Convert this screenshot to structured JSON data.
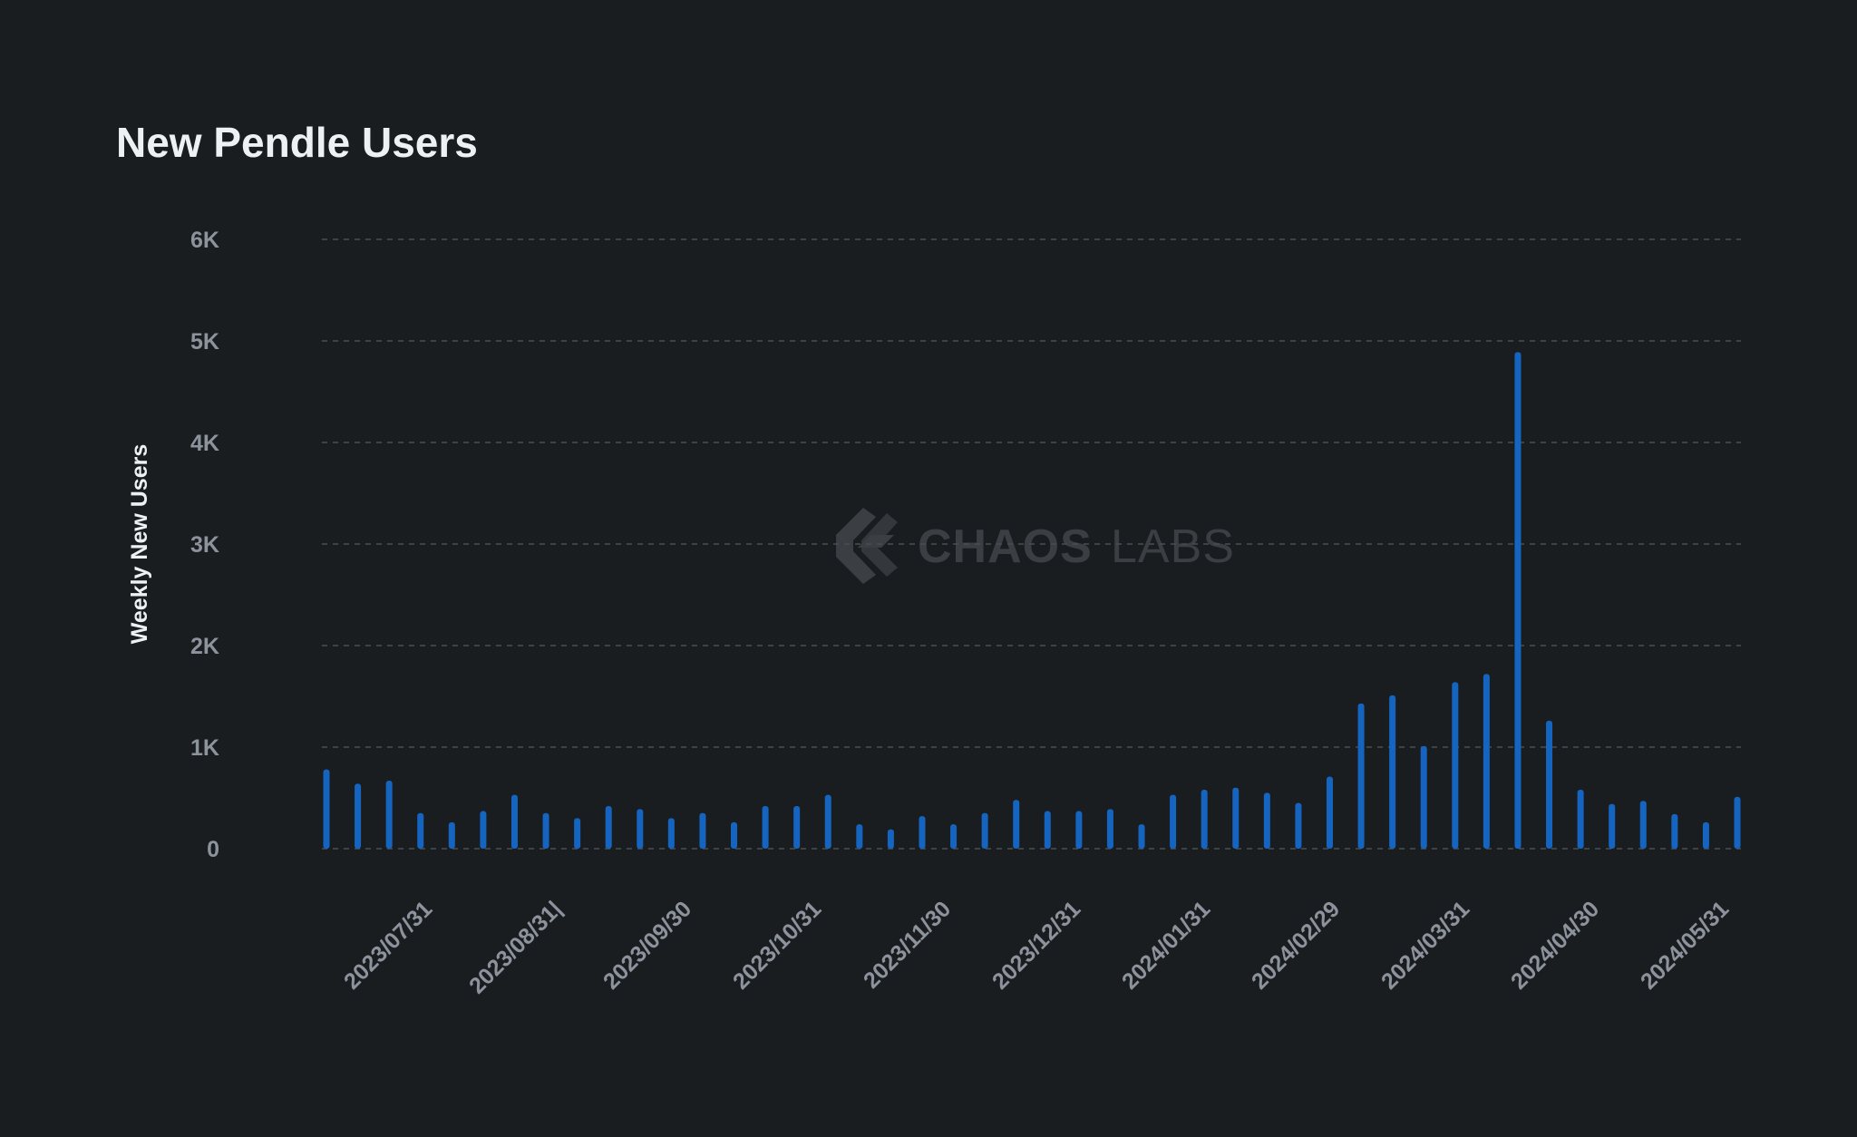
{
  "chart_data": {
    "type": "bar",
    "title": "New Pendle Users",
    "xlabel": "",
    "ylabel": "Weekly New Users",
    "ylim": [
      0,
      6000
    ],
    "y_ticks": [
      0,
      1000,
      2000,
      3000,
      4000,
      5000,
      6000
    ],
    "y_tick_labels": [
      "0",
      "1K",
      "2K",
      "3K",
      "4K",
      "5K",
      "6K"
    ],
    "x_tick_labels": [
      "2023/07/31",
      "2023/08/31|",
      "2023/09/30",
      "2023/10/31",
      "2023/11/30",
      "2023/12/31",
      "2024/01/31",
      "2024/02/29",
      "2024/03/31",
      "2024/04/30",
      "2024/05/31"
    ],
    "grid": true,
    "bar_color": "#1565c0",
    "series": [
      {
        "values": [
          780,
          640,
          670,
          350,
          260,
          370,
          530,
          350,
          300,
          420,
          390,
          300,
          350,
          260,
          420,
          420,
          530,
          240,
          190,
          320,
          240,
          350,
          480,
          370,
          370,
          390,
          240,
          530,
          580,
          600,
          550,
          450,
          710,
          1430,
          1510,
          1010,
          1640,
          1720,
          4890,
          1260,
          580,
          440,
          470,
          340,
          260,
          510
        ]
      }
    ]
  },
  "watermark": {
    "brand": "CHAOS",
    "suffix": "LABS"
  }
}
